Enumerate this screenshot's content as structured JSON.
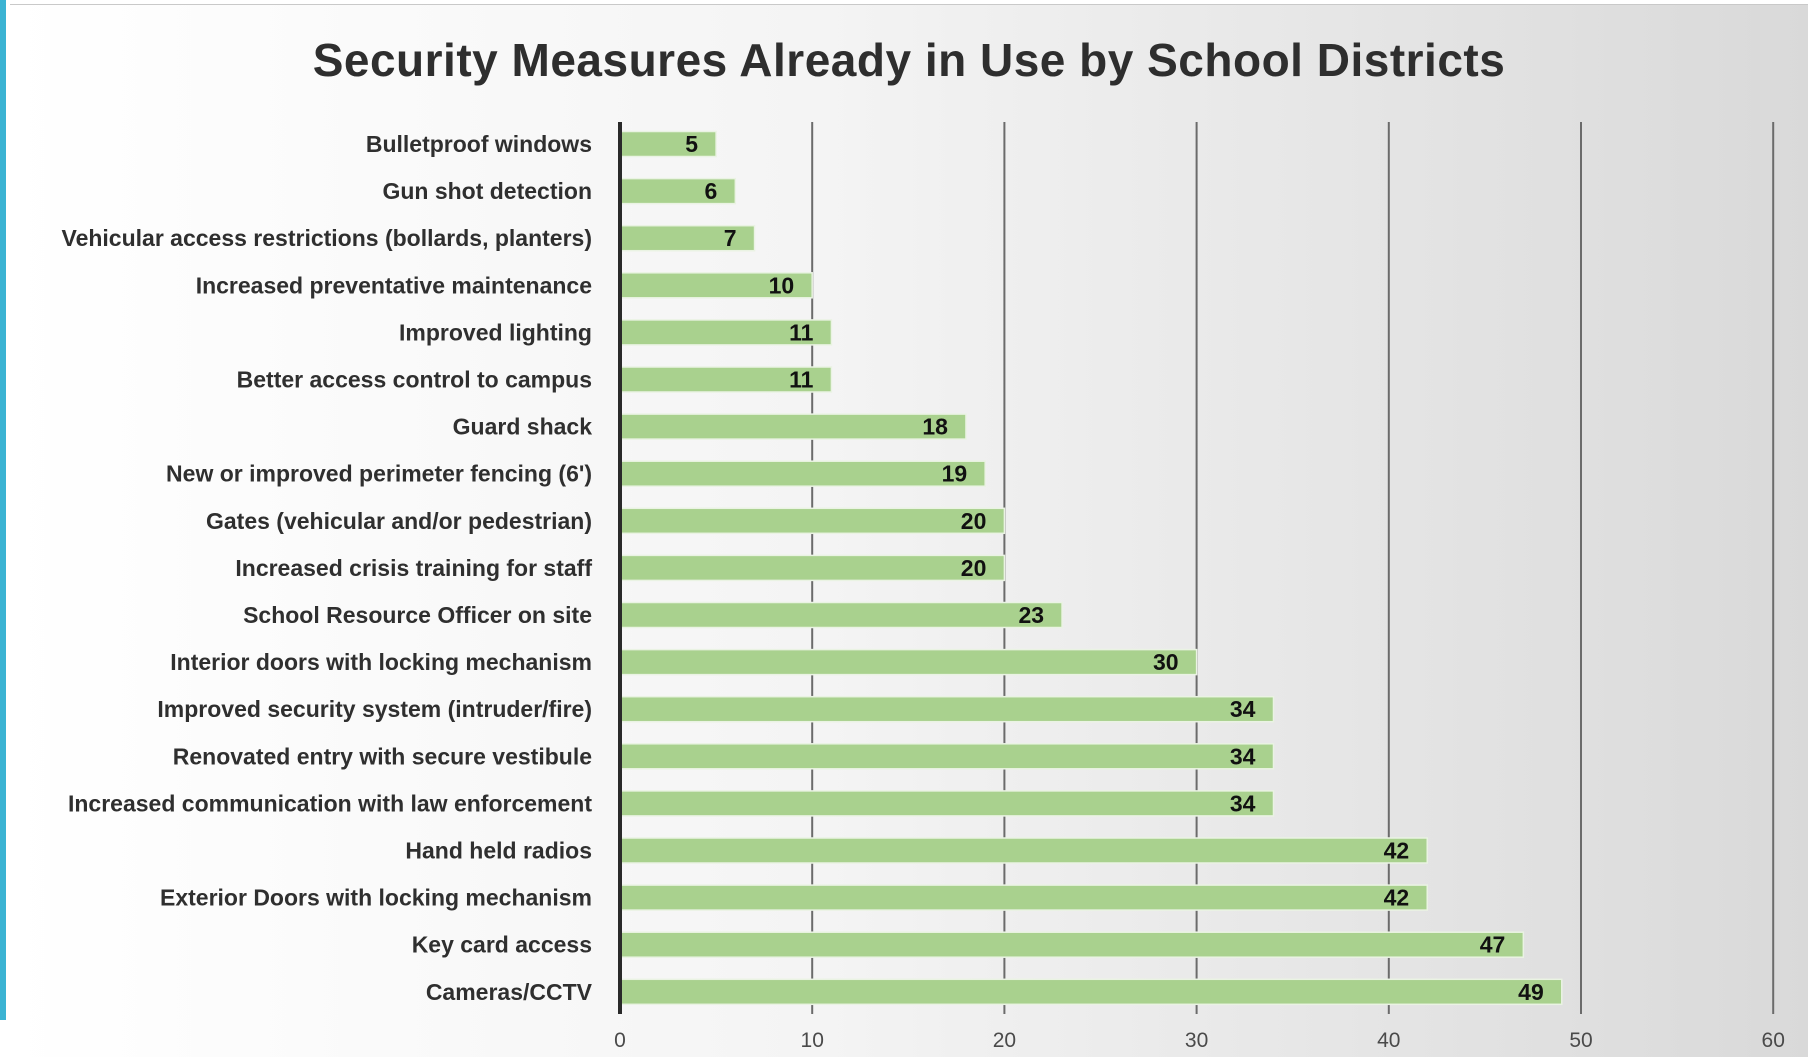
{
  "chart_data": {
    "type": "bar",
    "orientation": "horizontal",
    "title": "Security Measures Already in Use by School Districts",
    "categories": [
      "Bulletproof windows",
      "Gun shot detection",
      "Vehicular access restrictions (bollards, planters)",
      "Increased preventative maintenance",
      "Improved lighting",
      "Better access control to campus",
      "Guard shack",
      "New or improved perimeter fencing (6')",
      "Gates (vehicular and/or pedestrian)",
      "Increased crisis training for staff",
      "School Resource Officer on site",
      "Interior doors with locking mechanism",
      "Improved security system (intruder/fire)",
      "Renovated entry with secure vestibule",
      "Increased communication with law enforcement",
      "Hand held radios",
      "Exterior Doors with locking mechanism",
      "Key card access",
      "Cameras/CCTV"
    ],
    "values": [
      5,
      6,
      7,
      10,
      11,
      11,
      18,
      19,
      20,
      20,
      23,
      30,
      34,
      34,
      34,
      42,
      42,
      47,
      49
    ],
    "xlim": [
      0,
      60
    ],
    "x_ticks": [
      "0",
      "10",
      "20",
      "30",
      "40",
      "50",
      "60"
    ],
    "grid": "vertical",
    "bar_color": "#a9d18e",
    "axis_color": "#2a2a2a",
    "gridline_color": "#6b6b6b",
    "accent_color": "#3bb3d3"
  }
}
